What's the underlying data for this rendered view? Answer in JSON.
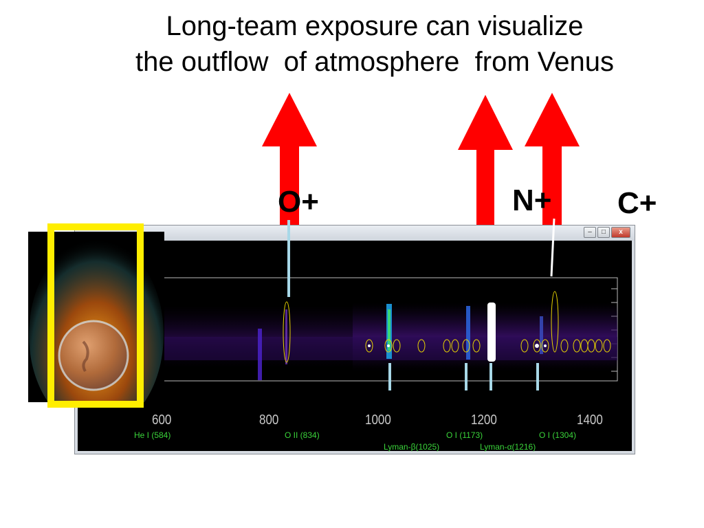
{
  "slide": {
    "title_line1": "Long-team exposure can visualize",
    "title_line2": "the outflow  of atmosphere  from Venus"
  },
  "ions": {
    "o_plus": "O+",
    "n_plus": "N+",
    "c_plus": "C+"
  },
  "colors": {
    "arrow": "#ff0000",
    "frame": "#ffee00",
    "line_label": "#3ad43a"
  },
  "window": {
    "buttons": [
      "–",
      "□",
      "x"
    ]
  },
  "spectrum": {
    "x_ticks": [
      "600",
      "800",
      "1000",
      "1200",
      "1400"
    ],
    "lines": [
      {
        "label": "He I (584)"
      },
      {
        "label": "O II (834)"
      },
      {
        "label": "Lyman-β(1025)"
      },
      {
        "label": "O I (1173)"
      },
      {
        "label": "Lyman-α(1216)"
      },
      {
        "label": "O I (1304)"
      }
    ]
  }
}
